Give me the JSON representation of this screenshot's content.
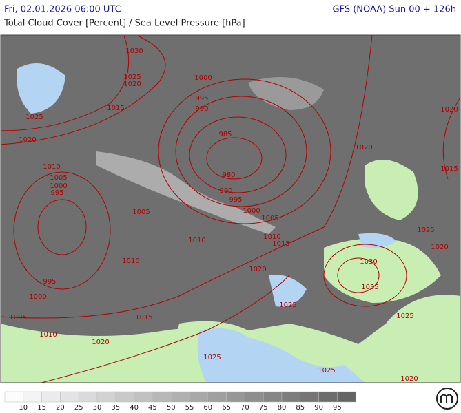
{
  "header": {
    "left_title": "Fri, 02.01.2026 06:00 UTC",
    "right_title": "GFS (NOAA) Sun 00 + 126h",
    "subtitle": "Total Cloud Cover [Percent] / Sea Level Pressure [hPa]"
  },
  "isobar_labels": [
    1030,
    1025,
    1020,
    1000,
    995,
    990,
    1015,
    1025,
    1020,
    985,
    980,
    990,
    995,
    1000,
    1010,
    1005,
    1000,
    995,
    1005,
    1005,
    1010,
    1010,
    1015,
    1010,
    995,
    1000,
    1020,
    1020,
    1015,
    1020,
    1025,
    1020,
    1030,
    1035,
    1025,
    1005,
    1015,
    1010,
    1020,
    1025,
    1025,
    1025,
    1020
  ],
  "legend": {
    "labels": [
      10,
      15,
      20,
      25,
      30,
      35,
      40,
      45,
      50,
      55,
      60,
      65,
      70,
      75,
      80,
      85,
      90,
      95
    ]
  }
}
